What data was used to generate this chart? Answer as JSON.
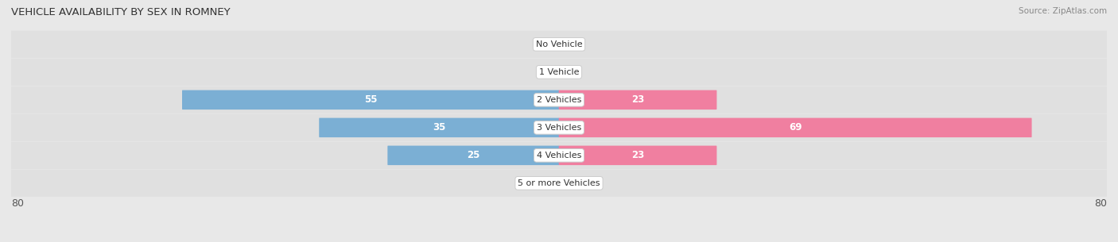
{
  "title": "VEHICLE AVAILABILITY BY SEX IN ROMNEY",
  "source": "Source: ZipAtlas.com",
  "categories": [
    "No Vehicle",
    "1 Vehicle",
    "2 Vehicles",
    "3 Vehicles",
    "4 Vehicles",
    "5 or more Vehicles"
  ],
  "male_values": [
    0,
    0,
    55,
    35,
    25,
    0
  ],
  "female_values": [
    0,
    0,
    23,
    69,
    23,
    0
  ],
  "male_color": "#7bafd4",
  "female_color": "#f07fa0",
  "axis_max": 80,
  "bg_color": "#e8e8e8",
  "bar_bg_color": "#d8d8d8",
  "row_bg_color": "#e0e0e0",
  "legend_male_color": "#6b9dc8",
  "legend_female_color": "#e8607a"
}
